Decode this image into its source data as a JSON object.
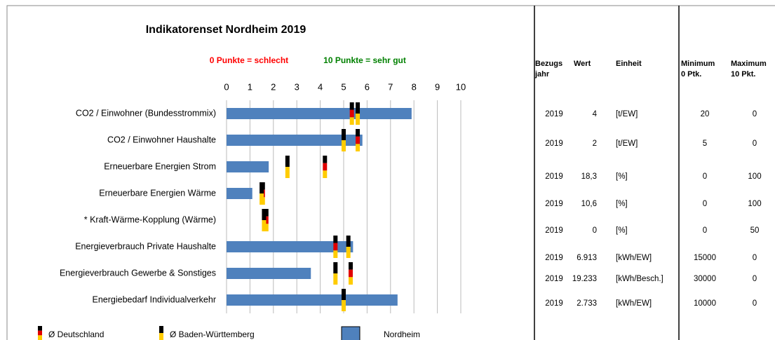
{
  "chart_data": {
    "type": "bar",
    "orientation": "horizontal",
    "title": "Indikatorenset Nordheim 2019",
    "annotations": [
      {
        "text": "0 Punkte = schlecht",
        "color": "#ff0000"
      },
      {
        "text": "10 Punkte = sehr gut",
        "color": "#008000"
      }
    ],
    "categories": [
      "CO2 / Einwohner (Bundesstrommix)",
      "CO2 / Einwohner Haushalte",
      "Erneuerbare Energien Strom",
      "Erneuerbare Energien Wärme",
      "* Kraft-Wärme-Kopplung (Wärme)",
      "Energieverbrauch Private Haushalte",
      "Energieverbrauch Gewerbe & Sonstiges",
      "Energiebedarf Individualverkehr"
    ],
    "series": [
      {
        "name": "Ø Deutschland",
        "mark": "flag",
        "colors": [
          "#000000",
          "#e00000",
          "#ffcc00"
        ],
        "values": [
          5.35,
          5.6,
          4.2,
          1.55,
          1.7,
          4.65,
          5.3,
          5.0
        ]
      },
      {
        "name": "Ø Baden-Württemberg",
        "mark": "flag",
        "colors": [
          "#000000",
          "#ffcc00"
        ],
        "values": [
          5.6,
          5.0,
          2.6,
          1.5,
          1.6,
          5.2,
          4.65,
          5.0
        ]
      },
      {
        "name": "Nordheim",
        "mark": "bar",
        "color": "#4f81bd",
        "values": [
          7.9,
          5.8,
          1.8,
          1.1,
          0,
          5.4,
          3.6,
          7.3
        ]
      }
    ],
    "xlim": [
      0,
      10
    ],
    "xticks": [
      0,
      1,
      2,
      3,
      4,
      5,
      6,
      7,
      8,
      9,
      10
    ],
    "grid": true
  },
  "table": {
    "header": [
      [
        "Bezugs",
        "jahr"
      ],
      [
        "Wert"
      ],
      [
        "Einheit"
      ],
      [
        "Minimum",
        "0 Ptk."
      ],
      [
        "Maximum",
        "10 Pkt."
      ]
    ],
    "rows": [
      [
        "2019",
        "4",
        "[t/EW]",
        "20",
        "0"
      ],
      [
        "2019",
        "2",
        "[t/EW]",
        "5",
        "0"
      ],
      [
        "2019",
        "18,3",
        "[%]",
        "0",
        "100"
      ],
      [
        "2019",
        "10,6",
        "[%]",
        "0",
        "100"
      ],
      [
        "2019",
        "0",
        "[%]",
        "0",
        "50"
      ],
      [
        "2019",
        "6.913",
        "[kWh/EW]",
        "15000",
        "0"
      ],
      [
        "2019",
        "19.233",
        "[kWh/Besch.]",
        "30000",
        "0"
      ],
      [
        "2019",
        "2.733",
        "[kWh/EW]",
        "10000",
        "0"
      ]
    ]
  }
}
